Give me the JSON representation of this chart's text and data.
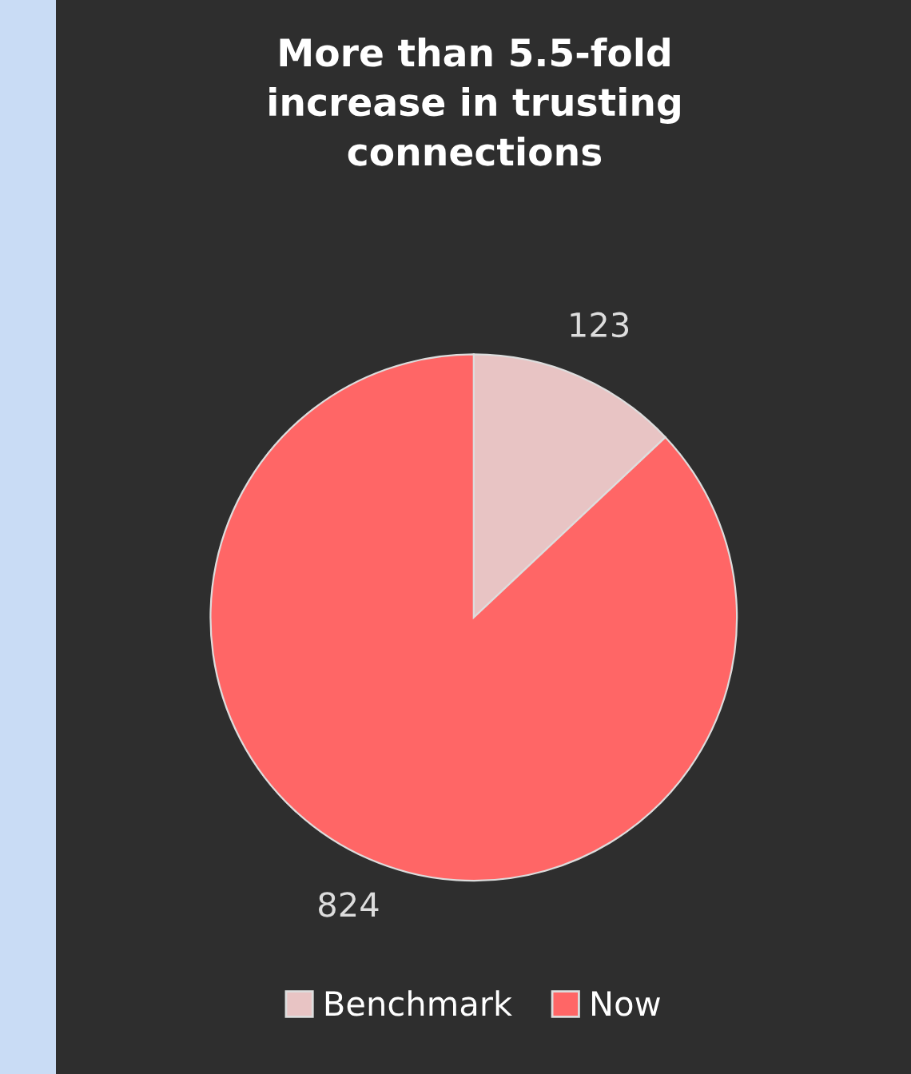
{
  "chart_data": {
    "type": "pie",
    "title": "More than 5.5-fold\nincrease in trusting\nconnections",
    "categories": [
      "Benchmark",
      "Now"
    ],
    "values": [
      123,
      824
    ],
    "colors": [
      "#e8c4c4",
      "#ff6666"
    ],
    "data_labels": true,
    "legend": "bottom"
  }
}
